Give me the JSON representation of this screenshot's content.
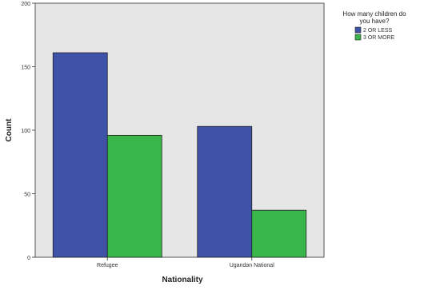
{
  "chart_data": {
    "type": "bar",
    "categories": [
      "Refugee",
      "Ugandan National"
    ],
    "series": [
      {
        "name": "2 OR LESS",
        "values": [
          161,
          103
        ],
        "color": "#3e53a8"
      },
      {
        "name": "3 OR MORE",
        "values": [
          96,
          37
        ],
        "color": "#39b54a"
      }
    ],
    "xlabel": "Nationality",
    "ylabel": "Count",
    "ylim": [
      0,
      200
    ],
    "yticks": [
      0,
      50,
      100,
      150,
      200
    ],
    "legend": {
      "title_line1": "How many children do",
      "title_line2": "you have?",
      "position": "top-right"
    },
    "grid": false,
    "plot_background": "#e6e6e6"
  }
}
